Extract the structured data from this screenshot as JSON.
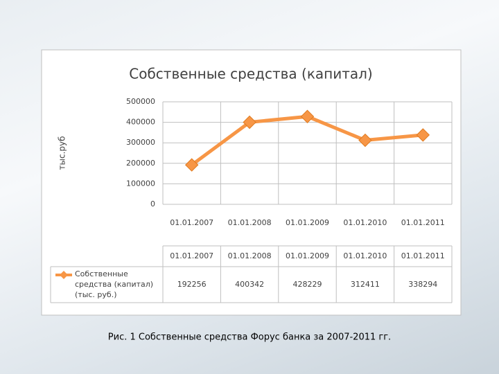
{
  "chart_data": {
    "type": "line",
    "title": "Собственные средства (капитал)",
    "y_label": "тыс.руб",
    "categories": [
      "01.01.2007",
      "01.01.2008",
      "01.01.2009",
      "01.01.2010",
      "01.01.2011"
    ],
    "series": [
      {
        "name": "Собственные средства (капитал) (тыс. руб.)",
        "color": "#f79646",
        "values": [
          192256,
          400342,
          428229,
          312411,
          338294
        ]
      }
    ],
    "ylim": [
      0,
      500000
    ],
    "yticks": [
      0,
      100000,
      200000,
      300000,
      400000,
      500000
    ],
    "grid": true,
    "data_table": true
  },
  "caption": "Рис. 1 Собственные средства Форус банка за 2007-2011 гг."
}
